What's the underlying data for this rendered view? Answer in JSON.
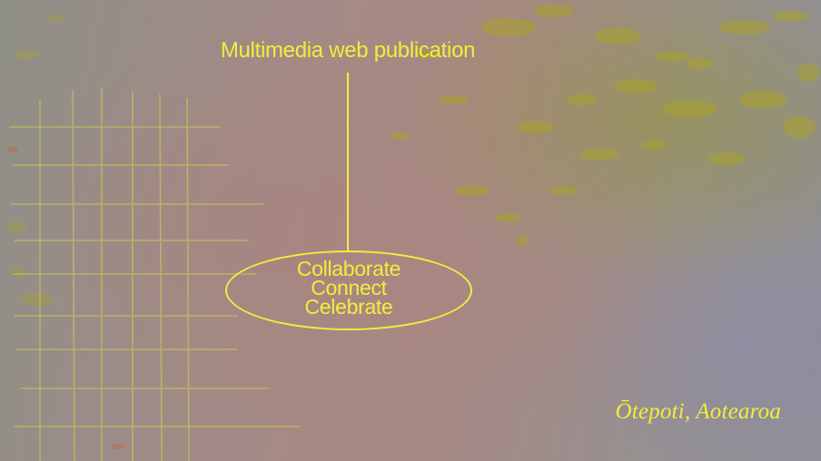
{
  "headline": "Multimedia web publication",
  "oval_lines": [
    "Collaborate",
    "Connect",
    "Celebrate"
  ],
  "place": "Ōtepoti, Aotearoa",
  "colors": {
    "accent": "#f2ee3a",
    "grid": "#c8c25a",
    "texture": "#a6a02a"
  }
}
